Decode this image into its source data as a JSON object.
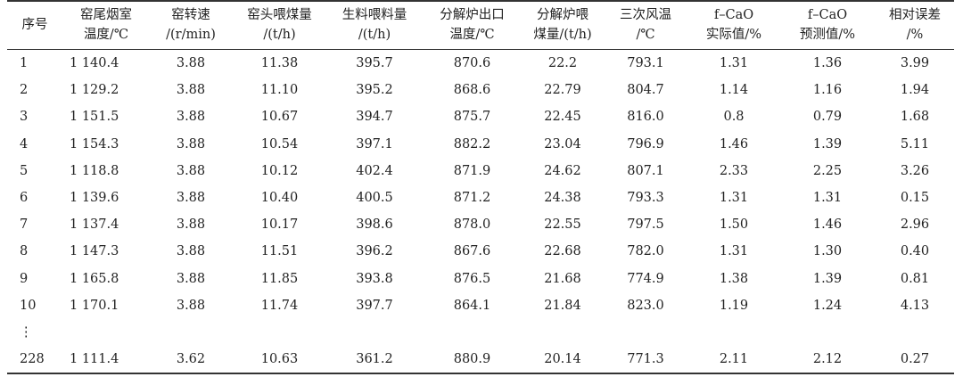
{
  "headers": [
    {
      "l1": "序号",
      "l2": ""
    },
    {
      "l1": "窑尾烟室",
      "l2": "温度/℃"
    },
    {
      "l1": "窑转速",
      "l2": "/(r/min)"
    },
    {
      "l1": "窑头喂煤量",
      "l2": "/(t/h)"
    },
    {
      "l1": "生料喂料量",
      "l2": "/(t/h)"
    },
    {
      "l1": "分解炉出口",
      "l2": "温度/℃"
    },
    {
      "l1": "分解炉喂",
      "l2": "煤量/(t/h)"
    },
    {
      "l1": "三次风温",
      "l2": "/℃"
    },
    {
      "l1": "f–CaO",
      "l2": "实际值/%"
    },
    {
      "l1": "f–CaO",
      "l2": "预测值/%"
    },
    {
      "l1": "相对误差",
      "l2": "/%"
    }
  ],
  "rows": [
    [
      "1",
      "1 140.4",
      "3.88",
      "11.38",
      "395.7",
      "870.6",
      "22.2",
      "793.1",
      "1.31",
      "1.36",
      "3.99"
    ],
    [
      "2",
      "1 129.2",
      "3.88",
      "11.10",
      "395.2",
      "868.6",
      "22.79",
      "804.7",
      "1.14",
      "1.16",
      "1.94"
    ],
    [
      "3",
      "1 151.5",
      "3.88",
      "10.67",
      "394.7",
      "875.7",
      "22.45",
      "816.0",
      "0.8",
      "0.79",
      "1.68"
    ],
    [
      "4",
      "1 154.3",
      "3.88",
      "10.54",
      "397.1",
      "882.2",
      "23.04",
      "796.9",
      "1.46",
      "1.39",
      "5.11"
    ],
    [
      "5",
      "1 118.8",
      "3.88",
      "10.12",
      "402.4",
      "871.9",
      "24.62",
      "807.1",
      "2.33",
      "2.25",
      "3.26"
    ],
    [
      "6",
      "1 139.6",
      "3.88",
      "10.40",
      "400.5",
      "871.2",
      "24.38",
      "793.3",
      "1.31",
      "1.31",
      "0.15"
    ],
    [
      "7",
      "1 137.4",
      "3.88",
      "10.17",
      "398.6",
      "878.0",
      "22.55",
      "797.5",
      "1.50",
      "1.46",
      "2.96"
    ],
    [
      "8",
      "1 147.3",
      "3.88",
      "11.51",
      "396.2",
      "867.6",
      "22.68",
      "782.0",
      "1.31",
      "1.30",
      "0.40"
    ],
    [
      "9",
      "1 165.8",
      "3.88",
      "11.85",
      "393.8",
      "876.5",
      "21.68",
      "774.9",
      "1.38",
      "1.39",
      "0.81"
    ],
    [
      "10",
      "1 170.1",
      "3.88",
      "11.74",
      "397.7",
      "864.1",
      "21.84",
      "823.0",
      "1.19",
      "1.24",
      "4.13"
    ],
    [
      "⋮",
      "",
      "",
      "",
      "",
      "",
      "",
      "",
      "",
      "",
      ""
    ],
    [
      "228",
      "1 111.4",
      "3.62",
      "10.63",
      "361.2",
      "880.9",
      "20.14",
      "771.3",
      "2.11",
      "2.12",
      "0.27"
    ]
  ]
}
